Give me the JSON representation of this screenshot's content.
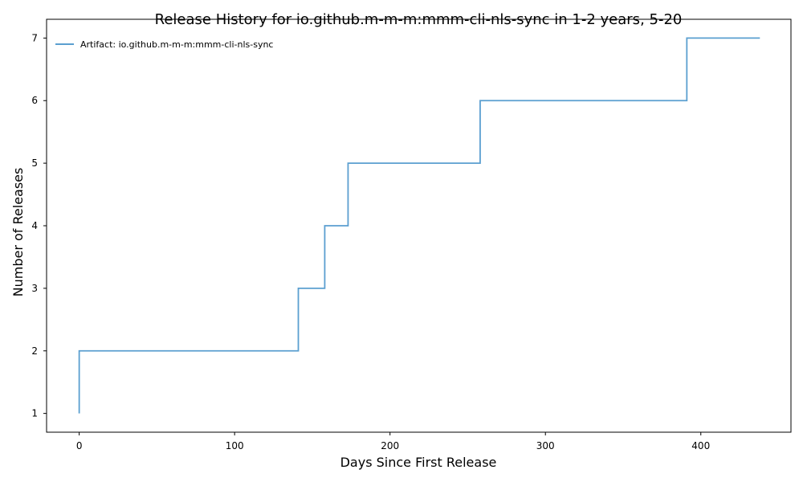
{
  "colors": {
    "series": "#5b9fd0",
    "axis": "#000000",
    "background": "#ffffff"
  },
  "chart_data": {
    "type": "line",
    "step": "post",
    "title": "Release History for io.github.m-m-m:mmm-cli-nls-sync in 1-2 years, 5-20",
    "xlabel": "Days Since First Release",
    "ylabel": "Number of Releases",
    "xlim": [
      -21,
      458
    ],
    "ylim": [
      0.7,
      7.3
    ],
    "xticks": [
      0,
      100,
      200,
      300,
      400
    ],
    "yticks": [
      1,
      2,
      3,
      4,
      5,
      6,
      7
    ],
    "grid": false,
    "legend_position": "top-left",
    "series": [
      {
        "name": "Artifact: io.github.m-m-m:mmm-cli-nls-sync",
        "x": [
          0,
          0,
          141,
          158,
          173,
          258,
          391,
          438
        ],
        "y": [
          1,
          2,
          3,
          4,
          5,
          6,
          7,
          7
        ]
      }
    ]
  }
}
